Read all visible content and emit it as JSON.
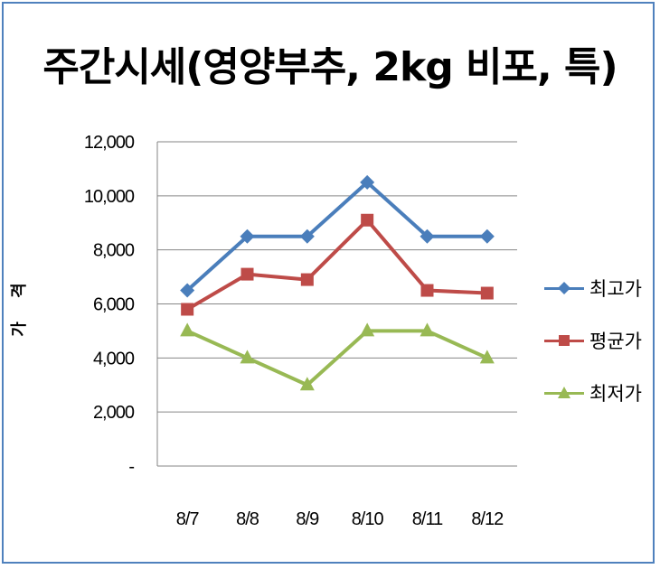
{
  "chart_data": {
    "type": "line",
    "title": "주간시세(영양부추, 2kg 비포, 특)",
    "ylabel": "가 격",
    "xlabel": "",
    "categories": [
      "8/7",
      "8/8",
      "8/9",
      "8/10",
      "8/11",
      "8/12"
    ],
    "ylim": [
      0,
      12000
    ],
    "yticks": [
      0,
      2000,
      4000,
      6000,
      8000,
      10000,
      12000
    ],
    "ytick_labels": [
      "-",
      "2,000",
      "4,000",
      "6,000",
      "8,000",
      "10,000",
      "12,000"
    ],
    "grid": true,
    "legend_position": "right",
    "series": [
      {
        "name": "최고가",
        "values": [
          6500,
          8500,
          8500,
          10500,
          8500,
          8500
        ],
        "color": "#4a7ebb",
        "marker": "diamond"
      },
      {
        "name": "평균가",
        "values": [
          5800,
          7100,
          6900,
          9100,
          6500,
          6400
        ],
        "color": "#be4b48",
        "marker": "square"
      },
      {
        "name": "최저가",
        "values": [
          5000,
          4000,
          3000,
          5000,
          5000,
          4000
        ],
        "color": "#98b954",
        "marker": "triangle"
      }
    ]
  }
}
